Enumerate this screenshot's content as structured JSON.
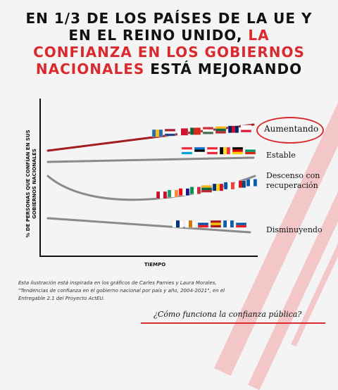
{
  "header": {
    "line1": "EN 1/3 DE LOS PAÍSES DE LA UE Y",
    "line2_black": "EN EL REINO UNIDO,",
    "line2_red": "LA",
    "line3_red": "CONFIANZA EN LOS GOBIERNOS",
    "line4_red": "NACIONALES",
    "line4_black": "ESTÁ MEJORANDO"
  },
  "chart_data": {
    "type": "line",
    "ylabel": "% DE PERSONAS QUE CONFÍAN EN SUS GOBIERNOS NACIONALES",
    "xlabel": "TIEMPO",
    "series": [
      {
        "name": "Aumentando",
        "color": "#a31d22",
        "shape": "rising",
        "flags": [
          "Suecia",
          "Países Bajos",
          "Malta",
          "Portugal",
          "Hungría",
          "Lituania",
          "Reino Unido",
          "Polonia"
        ]
      },
      {
        "name": "Estable",
        "color": "#8a8a8a",
        "shape": "flat",
        "flags": [
          "Luxemburgo",
          "Estonia",
          "Austria",
          "Bélgica",
          "Alemania",
          "Bulgaria"
        ]
      },
      {
        "name": "Descenso con recuperación",
        "color": "#8a8a8a",
        "shape": "u-curve",
        "flags": [
          "Dinamarca",
          "Irlanda",
          "Croacia",
          "Italia",
          "Lituania",
          "Rumanía",
          "Francia",
          "Chequia",
          "Grecia"
        ]
      },
      {
        "name": "Disminuyendo",
        "color": "#8a8a8a",
        "shape": "declining",
        "flags": [
          "Finlandia",
          "Chipre",
          "Eslovaquia",
          "España",
          "Grecia",
          "Eslovenia"
        ]
      }
    ]
  },
  "source_note": "Esta ilustración está inspirada en los gráficos de Carles Pamies y Laura Morales, \"Tendencias de confianza en el gobierno nacional por país y año, 2004-2021\", en el Entregable 2.1 del Proyecto ActEU.",
  "footer": {
    "link_text": "¿Cómo funciona la confianza pública?"
  },
  "colors": {
    "accent": "#d92b2f",
    "dark_red": "#a31d22",
    "grey_line": "#8a8a8a"
  }
}
